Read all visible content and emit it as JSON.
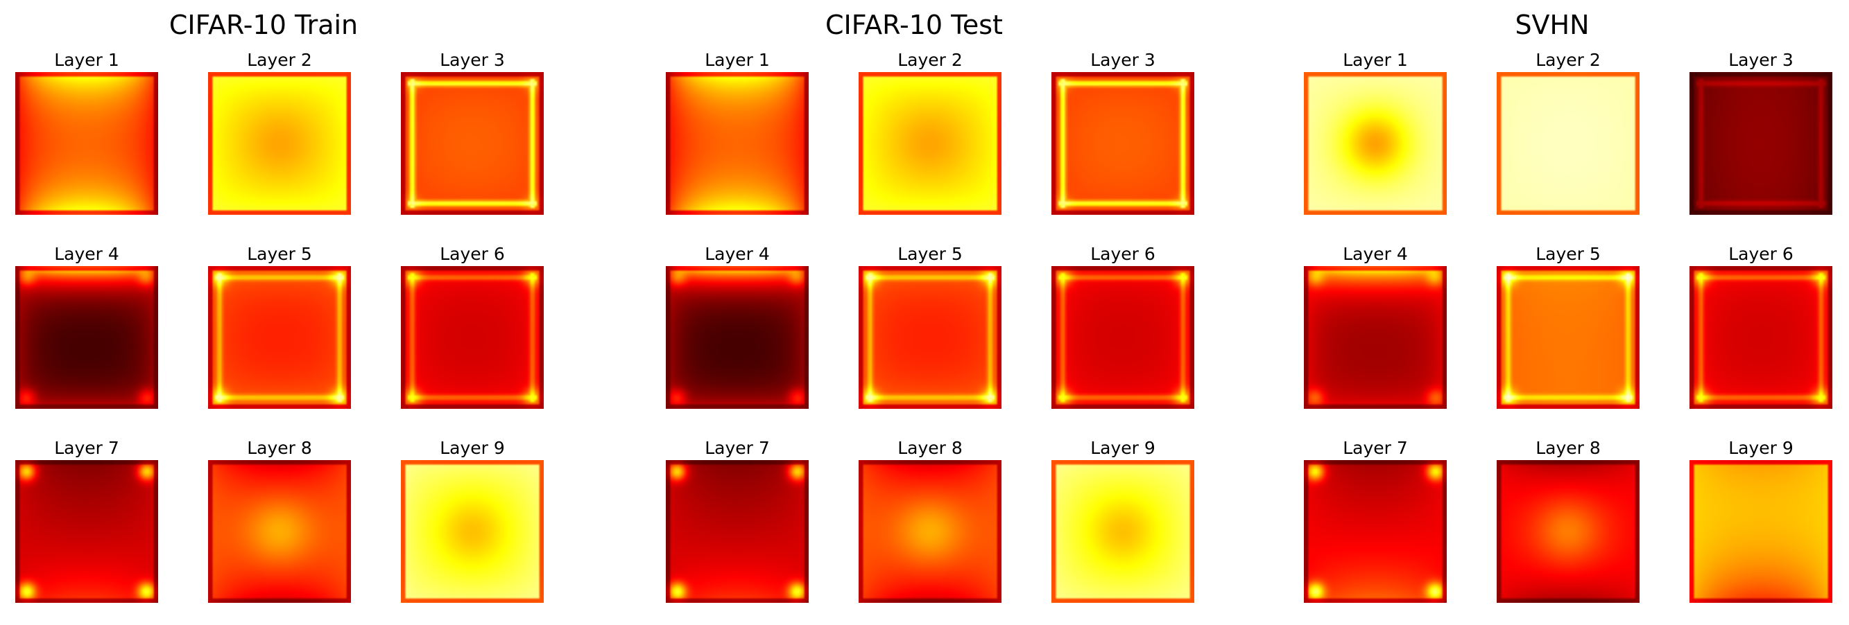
{
  "chart_data": [
    {
      "type": "heatmap",
      "title": "CIFAR-10 Train",
      "colormap": "hot",
      "subplots": [
        {
          "label": "Layer 1",
          "pattern": {
            "c": 0.48,
            "bT": 0.92,
            "bB": 0.92,
            "bL": 0.35,
            "bR": 0.35,
            "ew": 0.2,
            "spot": 0.0,
            "corner": 0.0,
            "frame": 0.0,
            "outer": 0.0
          }
        },
        {
          "label": "Layer 2",
          "pattern": {
            "c": 0.42,
            "bT": 0.82,
            "bB": 0.82,
            "bL": 0.8,
            "bR": 0.8,
            "ew": 0.35,
            "spot": -0.05,
            "corner": 0.0,
            "frame": 0.0,
            "outer": 0.0
          }
        },
        {
          "label": "Layer 3",
          "pattern": {
            "c": 0.58,
            "bT": 0.45,
            "bB": 0.45,
            "bL": 0.45,
            "bR": 0.45,
            "ew": 0.3,
            "spot": 0.0,
            "corner": 0.1,
            "frame": 0.35,
            "outer": 0.0
          }
        },
        {
          "label": "Layer 4",
          "pattern": {
            "c": 0.05,
            "bT": 0.9,
            "bB": 0.3,
            "bL": 0.25,
            "bR": 0.25,
            "ew": 0.12,
            "spot": 0.0,
            "corner": 0.2,
            "frame": 0.0,
            "outer": 0.0
          }
        },
        {
          "label": "Layer 5",
          "pattern": {
            "c": 0.38,
            "bT": 0.55,
            "bB": 0.55,
            "bL": 0.5,
            "bR": 0.5,
            "ew": 0.18,
            "spot": 0.0,
            "corner": 0.25,
            "frame": 0.2,
            "outer": 0.0
          }
        },
        {
          "label": "Layer 6",
          "pattern": {
            "c": 0.28,
            "bT": 0.4,
            "bB": 0.4,
            "bL": 0.4,
            "bR": 0.4,
            "ew": 0.14,
            "spot": 0.0,
            "corner": 0.25,
            "frame": 0.18,
            "outer": 0.0
          }
        },
        {
          "label": "Layer 7",
          "pattern": {
            "c": 0.18,
            "bT": 0.05,
            "bB": 0.55,
            "bL": 0.3,
            "bR": 0.3,
            "ew": 0.35,
            "spot": 0.0,
            "corner": 0.45,
            "frame": 0.0,
            "outer": 0.0
          }
        },
        {
          "label": "Layer 8",
          "pattern": {
            "c": 0.9,
            "bT": 0.1,
            "bB": 0.1,
            "bL": 0.5,
            "bR": 0.5,
            "ew": 0.45,
            "spot": 0.15,
            "corner": 0.0,
            "frame": 0.0,
            "outer": 0.0
          }
        },
        {
          "label": "Layer 9",
          "pattern": {
            "c": 0.05,
            "bT": 0.85,
            "bB": 0.85,
            "bL": 0.9,
            "bR": 0.9,
            "ew": 0.55,
            "spot": -0.1,
            "corner": 0.0,
            "frame": 0.0,
            "outer": 0.0
          }
        }
      ]
    },
    {
      "type": "heatmap",
      "title": "CIFAR-10 Test",
      "colormap": "hot",
      "subplots": [
        {
          "label": "Layer 1",
          "pattern": {
            "c": 0.48,
            "bT": 0.92,
            "bB": 0.92,
            "bL": 0.35,
            "bR": 0.35,
            "ew": 0.2,
            "spot": 0.0,
            "corner": 0.0,
            "frame": 0.0,
            "outer": 0.0
          }
        },
        {
          "label": "Layer 2",
          "pattern": {
            "c": 0.42,
            "bT": 0.82,
            "bB": 0.82,
            "bL": 0.8,
            "bR": 0.8,
            "ew": 0.35,
            "spot": -0.05,
            "corner": 0.0,
            "frame": 0.0,
            "outer": 0.0
          }
        },
        {
          "label": "Layer 3",
          "pattern": {
            "c": 0.58,
            "bT": 0.45,
            "bB": 0.45,
            "bL": 0.45,
            "bR": 0.45,
            "ew": 0.3,
            "spot": 0.0,
            "corner": 0.1,
            "frame": 0.35,
            "outer": 0.0
          }
        },
        {
          "label": "Layer 4",
          "pattern": {
            "c": 0.05,
            "bT": 0.9,
            "bB": 0.3,
            "bL": 0.25,
            "bR": 0.25,
            "ew": 0.12,
            "spot": 0.0,
            "corner": 0.2,
            "frame": 0.0,
            "outer": 0.0
          }
        },
        {
          "label": "Layer 5",
          "pattern": {
            "c": 0.38,
            "bT": 0.55,
            "bB": 0.55,
            "bL": 0.5,
            "bR": 0.5,
            "ew": 0.18,
            "spot": 0.0,
            "corner": 0.25,
            "frame": 0.2,
            "outer": 0.0
          }
        },
        {
          "label": "Layer 6",
          "pattern": {
            "c": 0.28,
            "bT": 0.4,
            "bB": 0.4,
            "bL": 0.4,
            "bR": 0.4,
            "ew": 0.14,
            "spot": 0.0,
            "corner": 0.25,
            "frame": 0.18,
            "outer": 0.0
          }
        },
        {
          "label": "Layer 7",
          "pattern": {
            "c": 0.18,
            "bT": 0.05,
            "bB": 0.55,
            "bL": 0.3,
            "bR": 0.3,
            "ew": 0.35,
            "spot": 0.0,
            "corner": 0.45,
            "frame": 0.0,
            "outer": 0.0
          }
        },
        {
          "label": "Layer 8",
          "pattern": {
            "c": 0.9,
            "bT": 0.1,
            "bB": 0.1,
            "bL": 0.5,
            "bR": 0.5,
            "ew": 0.45,
            "spot": 0.15,
            "corner": 0.0,
            "frame": 0.0,
            "outer": 0.0
          }
        },
        {
          "label": "Layer 9",
          "pattern": {
            "c": 0.05,
            "bT": 0.85,
            "bB": 0.85,
            "bL": 0.9,
            "bR": 0.9,
            "ew": 0.55,
            "spot": -0.1,
            "corner": 0.0,
            "frame": 0.0,
            "outer": 0.0
          }
        }
      ]
    },
    {
      "type": "heatmap",
      "title": "SVHN",
      "colormap": "hot",
      "subplots": [
        {
          "label": "Layer 1",
          "pattern": {
            "c": 0.8,
            "bT": 0.92,
            "bB": 0.92,
            "bL": 0.92,
            "bR": 0.92,
            "ew": 0.3,
            "spot": -0.25,
            "corner": 0.0,
            "frame": 0.0,
            "outer": 0.0
          }
        },
        {
          "label": "Layer 2",
          "pattern": {
            "c": 0.96,
            "bT": 0.93,
            "bB": 0.93,
            "bL": 0.92,
            "bR": 0.92,
            "ew": 0.3,
            "spot": 0.0,
            "corner": 0.0,
            "frame": 0.0,
            "outer": 0.0
          }
        },
        {
          "label": "Layer 3",
          "pattern": {
            "c": 0.25,
            "bT": 0.2,
            "bB": 0.2,
            "bL": 0.1,
            "bR": 0.1,
            "ew": 0.3,
            "spot": 0.0,
            "corner": 0.0,
            "frame": 0.1,
            "outer": 0.0
          }
        },
        {
          "label": "Layer 4",
          "pattern": {
            "c": 0.2,
            "bT": 0.92,
            "bB": 0.35,
            "bL": 0.35,
            "bR": 0.35,
            "ew": 0.12,
            "spot": 0.0,
            "corner": 0.2,
            "frame": 0.0,
            "outer": 0.0
          }
        },
        {
          "label": "Layer 5",
          "pattern": {
            "c": 0.55,
            "bT": 0.6,
            "bB": 0.55,
            "bL": 0.5,
            "bR": 0.5,
            "ew": 0.18,
            "spot": 0.0,
            "corner": 0.25,
            "frame": 0.2,
            "outer": 0.0
          }
        },
        {
          "label": "Layer 6",
          "pattern": {
            "c": 0.28,
            "bT": 0.4,
            "bB": 0.4,
            "bL": 0.4,
            "bR": 0.4,
            "ew": 0.14,
            "spot": 0.0,
            "corner": 0.25,
            "frame": 0.18,
            "outer": 0.0
          }
        },
        {
          "label": "Layer 7",
          "pattern": {
            "c": 0.25,
            "bT": 0.1,
            "bB": 0.65,
            "bL": 0.35,
            "bR": 0.35,
            "ew": 0.35,
            "spot": 0.0,
            "corner": 0.45,
            "frame": 0.0,
            "outer": 0.0
          }
        },
        {
          "label": "Layer 8",
          "pattern": {
            "c": 0.9,
            "bT": 0.1,
            "bB": 0.1,
            "bL": 0.35,
            "bR": 0.35,
            "ew": 0.45,
            "spot": 0.15,
            "corner": 0.0,
            "frame": 0.0,
            "outer": 0.0
          }
        },
        {
          "label": "Layer 9",
          "pattern": {
            "c": 0.85,
            "bT": 0.55,
            "bB": 0.2,
            "bL": 0.7,
            "bR": 0.7,
            "ew": 0.4,
            "spot": 0.0,
            "corner": 0.0,
            "frame": 0.0,
            "outer": 0.0
          }
        }
      ]
    }
  ]
}
